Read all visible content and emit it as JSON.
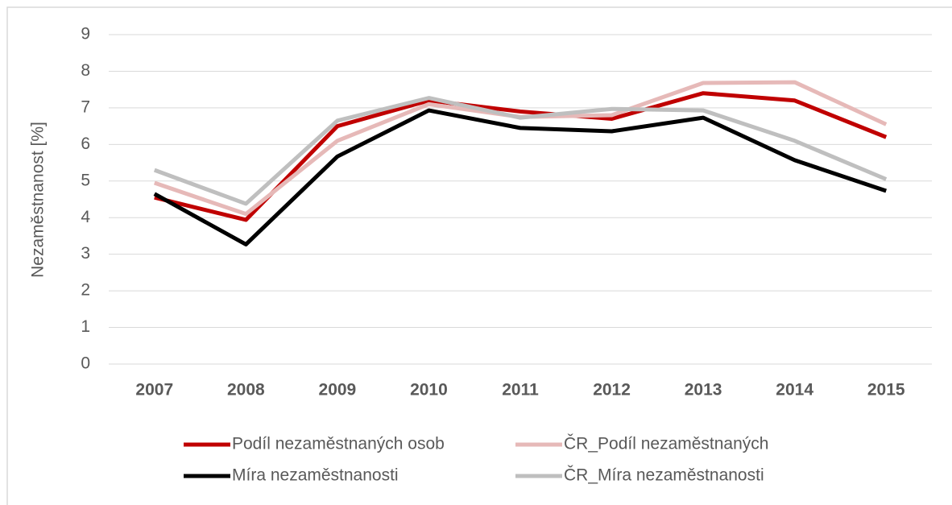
{
  "chart_data": {
    "type": "line",
    "y_label": "Nezaměstnanost [%]",
    "categories": [
      "2007",
      "2008",
      "2009",
      "2010",
      "2011",
      "2012",
      "2013",
      "2014",
      "2015"
    ],
    "series": [
      {
        "name": "Podíl nezaměstnaných osob",
        "color": "#c00000",
        "values": [
          4.55,
          3.94,
          6.5,
          7.2,
          6.9,
          6.7,
          7.4,
          7.2,
          6.2
        ]
      },
      {
        "name": "ČR_Podíl nezaměstnaných",
        "color": "#e6b9b8",
        "values": [
          4.95,
          4.1,
          6.1,
          7.1,
          6.75,
          6.8,
          7.68,
          7.7,
          6.55
        ]
      },
      {
        "name": "Míra nezaměstnanosti",
        "color": "#000000",
        "values": [
          4.65,
          3.27,
          5.67,
          6.93,
          6.45,
          6.36,
          6.73,
          5.57,
          4.73
        ]
      },
      {
        "name": "ČR_Míra nezaměstnanosti",
        "color": "#bfbfbf",
        "values": [
          5.3,
          4.38,
          6.65,
          7.27,
          6.73,
          6.97,
          6.93,
          6.1,
          5.05
        ]
      }
    ],
    "ylim": [
      0,
      9
    ],
    "yticks": [
      0,
      1,
      2,
      3,
      4,
      5,
      6,
      7,
      8,
      9
    ],
    "grid": true,
    "legend": "bottom"
  }
}
